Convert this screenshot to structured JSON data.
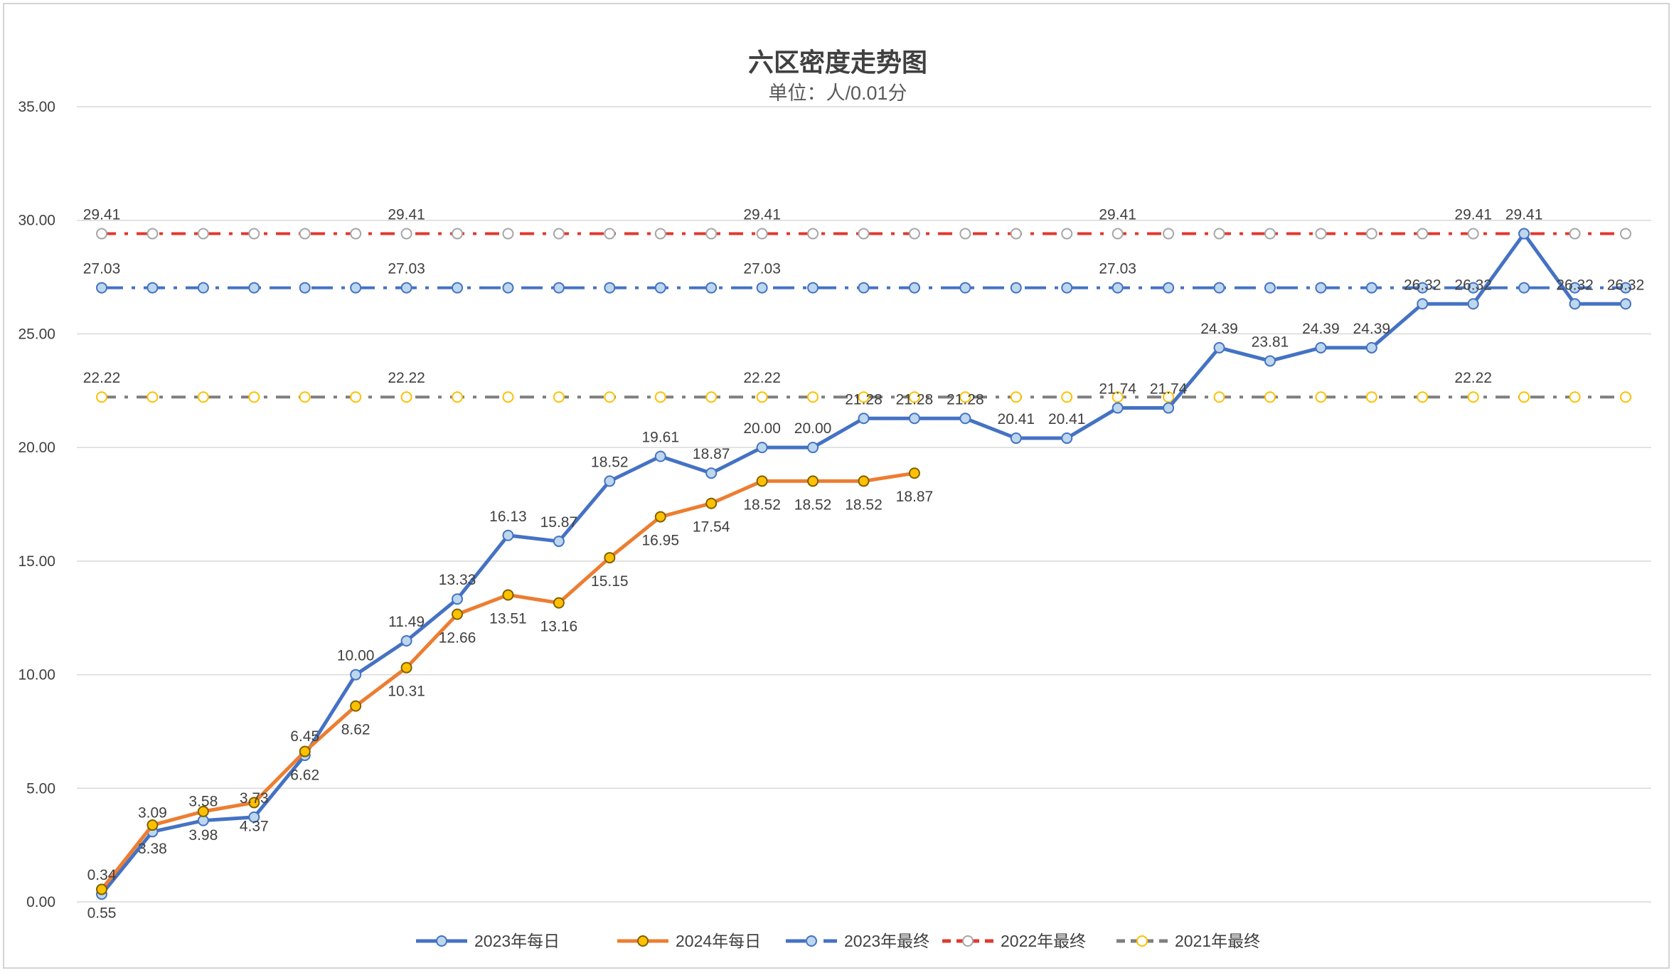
{
  "chart_data": {
    "type": "line",
    "title": "六区密度走势图",
    "subtitle": "单位：人/0.01分",
    "ylim": [
      0,
      35
    ],
    "yticks": [
      "0.00",
      "5.00",
      "10.00",
      "15.00",
      "20.00",
      "25.00",
      "30.00",
      "35.00"
    ],
    "grid": true,
    "legend_position": "bottom",
    "point_count": 31,
    "colors": {
      "s2023": "#4472C4",
      "s2024": "#ED7D31",
      "s2024_marker": "#FFC000",
      "final2022": "#E0392F",
      "final2021": "#7F7F7F",
      "marker_2023": "#BDD7EE",
      "marker_2021": "#FFC000",
      "marker_2022": "#A6A6A6",
      "grid": "#D9D9D9"
    },
    "series": [
      {
        "name": "2023年每日",
        "key": "s2023",
        "values": [
          0.34,
          3.09,
          3.58,
          3.73,
          6.45,
          10.0,
          11.49,
          13.33,
          16.13,
          15.87,
          18.52,
          19.61,
          18.87,
          20.0,
          20.0,
          21.28,
          21.28,
          21.28,
          20.41,
          20.41,
          21.74,
          21.74,
          24.39,
          23.81,
          24.39,
          24.39,
          26.32,
          26.32,
          29.41,
          26.32,
          26.32
        ],
        "labels": [
          "0.34",
          "3.09",
          "3.58",
          "3.73",
          "6.45",
          "10.00",
          "11.49",
          "13.33",
          "16.13",
          "15.87",
          "18.52",
          "19.61",
          "18.87",
          "20.00",
          "20.00",
          "21.28",
          "21.28",
          "21.28",
          "20.41",
          "20.41",
          "21.74",
          "21.74",
          "24.39",
          "23.81",
          "24.39",
          "24.39",
          "26.32",
          "26.32",
          "29.41",
          "26.32",
          "26.32"
        ]
      },
      {
        "name": "2024年每日",
        "key": "s2024",
        "values": [
          0.55,
          3.38,
          3.98,
          4.37,
          6.62,
          8.62,
          10.31,
          12.66,
          13.51,
          13.16,
          15.15,
          16.95,
          17.54,
          18.52,
          18.52,
          18.52,
          18.87
        ],
        "labels": [
          "0.55",
          "3.38",
          "3.98",
          "4.37",
          "6.62",
          "8.62",
          "10.31",
          "12.66",
          "13.51",
          "13.16",
          "15.15",
          "16.95",
          "17.54",
          "18.52",
          "18.52",
          "18.52",
          "18.87"
        ]
      },
      {
        "name": "2023年最终",
        "key": "final2023",
        "value": 27.03,
        "label": "27.03",
        "labeled_points": [
          0,
          6,
          13,
          20
        ]
      },
      {
        "name": "2022年最终",
        "key": "final2022",
        "value": 29.41,
        "label": "29.41",
        "labeled_points": [
          0,
          6,
          13,
          20,
          27
        ]
      },
      {
        "name": "2021年最终",
        "key": "final2021",
        "value": 22.22,
        "label": "22.22",
        "labeled_points": [
          0,
          6,
          13,
          27
        ]
      }
    ]
  }
}
